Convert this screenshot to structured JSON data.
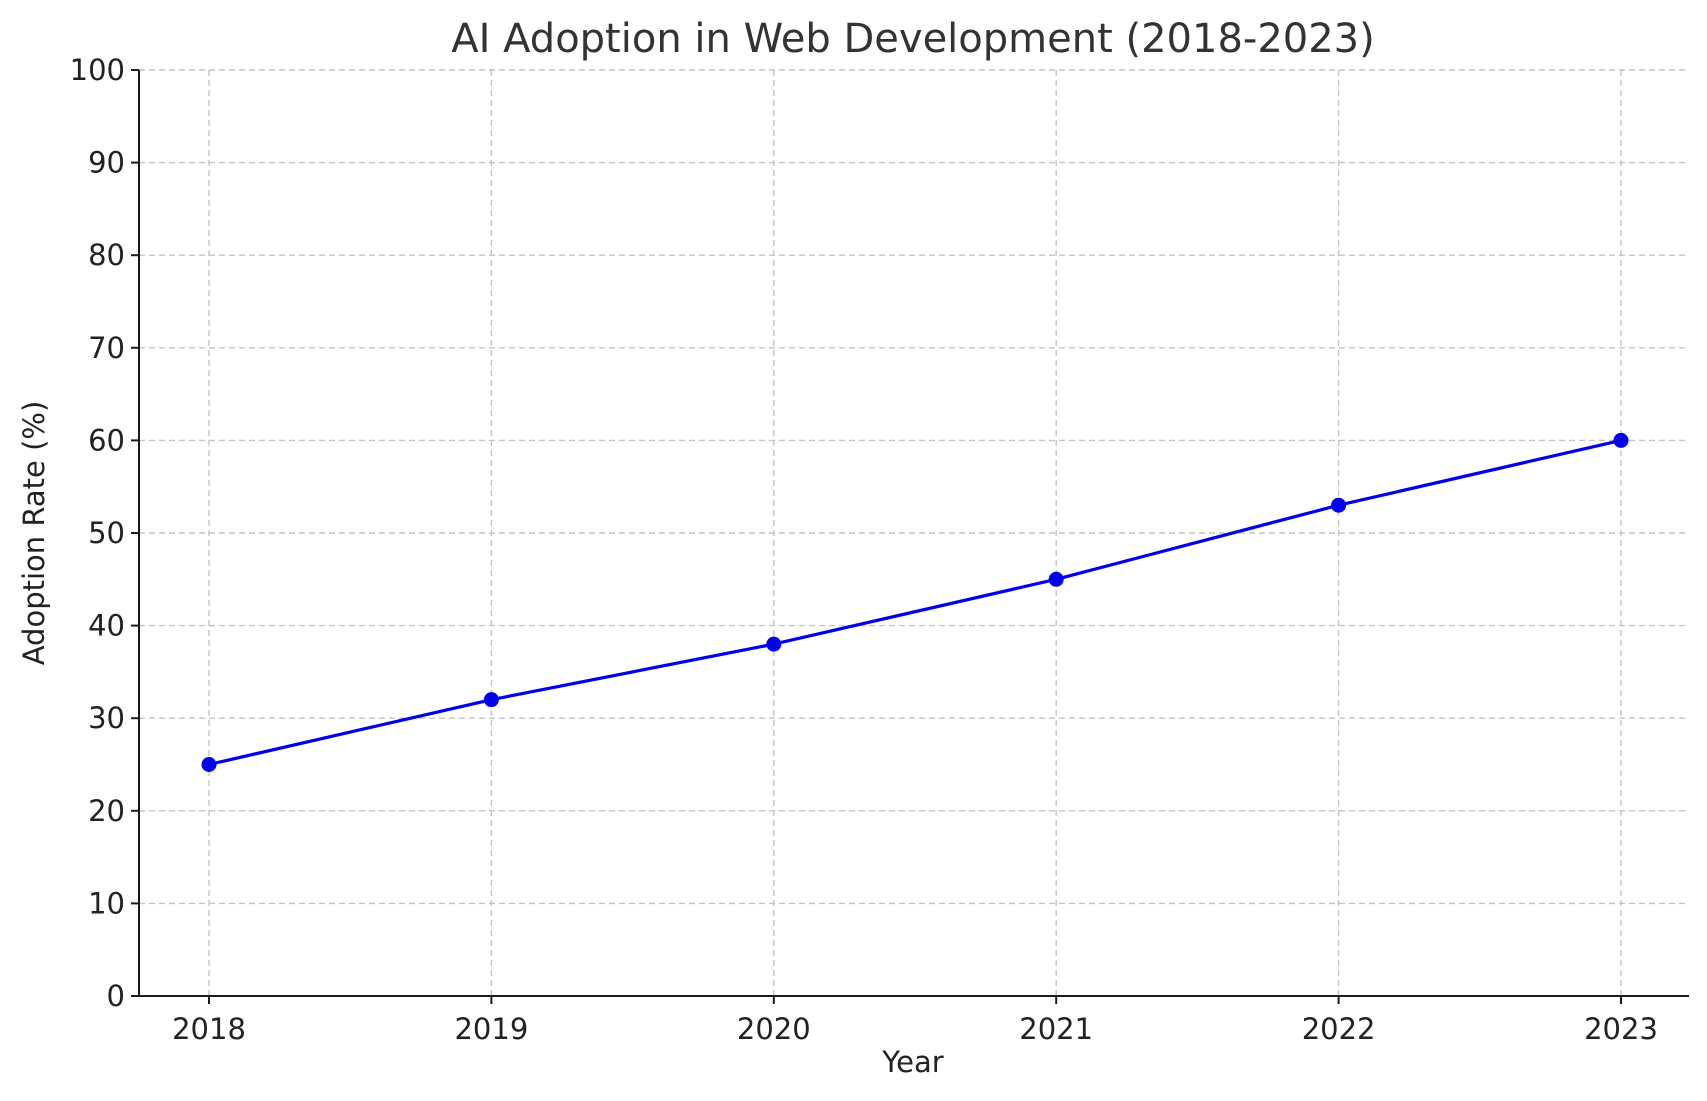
{
  "chart_data": {
    "type": "line",
    "title": "AI Adoption in Web Development (2018-2023)",
    "xlabel": "Year",
    "ylabel": "Adoption Rate (%)",
    "categories": [
      "2018",
      "2019",
      "2020",
      "2021",
      "2022",
      "2023"
    ],
    "series": [
      {
        "values": [
          25,
          32,
          38,
          45,
          53,
          60
        ],
        "color": "#0000ee",
        "marker": "circle"
      }
    ],
    "ylim": [
      0,
      100
    ],
    "yticks": [
      0,
      10,
      20,
      30,
      40,
      50,
      60,
      70,
      80,
      90,
      100
    ],
    "grid": true
  }
}
